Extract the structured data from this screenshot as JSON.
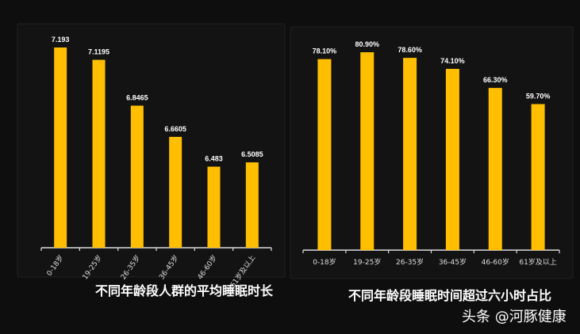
{
  "chart_data": [
    {
      "type": "bar",
      "title": "不同年龄段人群的平均睡眠时长",
      "categories": [
        "0-18岁",
        "19-25岁",
        "26-35岁",
        "36-45岁",
        "46-60岁",
        "61岁及以上"
      ],
      "values": [
        7.193,
        7.1195,
        6.8465,
        6.6605,
        6.483,
        6.5085
      ],
      "data_labels": [
        "7.193",
        "7.1195",
        "6.8465",
        "6.6605",
        "6.483",
        "6.5085"
      ],
      "ylim": [
        6.0,
        7.4
      ],
      "grid": false,
      "bar_color": "#ffbf00"
    },
    {
      "type": "bar",
      "title": "不同年龄段睡眠时间超过六小时占比",
      "categories": [
        "0-18岁",
        "19-25岁",
        "26-35岁",
        "36-45岁",
        "46-60岁",
        "61岁及以上"
      ],
      "values": [
        78.1,
        80.9,
        78.6,
        74.1,
        66.3,
        59.7
      ],
      "data_labels": [
        "78.10%",
        "80.90%",
        "78.60%",
        "74.10%",
        "66.30%",
        "59.70%"
      ],
      "ylim": [
        0,
        90
      ],
      "grid": false,
      "bar_color": "#ffbf00"
    }
  ],
  "watermark": "头条 @河豚健康",
  "colors": {
    "background": "#0f0e0e",
    "bar": "#ffbf00",
    "text": "#ffffff"
  }
}
